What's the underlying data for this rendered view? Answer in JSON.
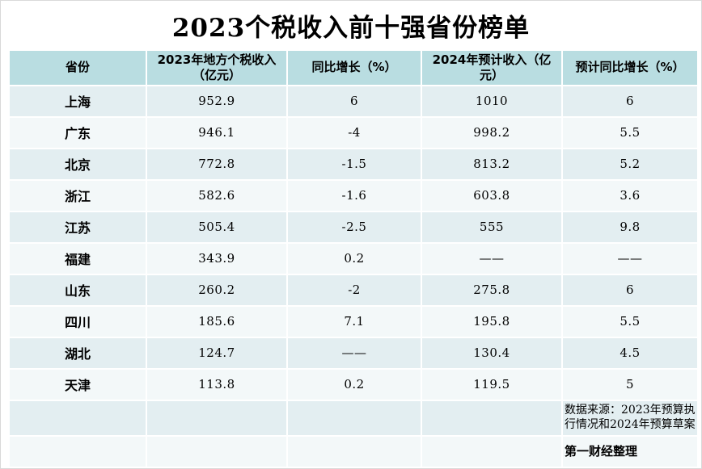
{
  "chart_data": {
    "type": "table",
    "title": "2023个税收入前十强省份榜单",
    "columns": [
      "省份",
      "2023年地方个税收入\n（亿元）",
      "同比增长（%）",
      "2024年预计收入（亿元）",
      "预计同比增长（%）"
    ],
    "rows": [
      [
        "上海",
        "952.9",
        "6",
        "1010",
        "6"
      ],
      [
        "广东",
        "946.1",
        "-4",
        "998.2",
        "5.5"
      ],
      [
        "北京",
        "772.8",
        "-1.5",
        "813.2",
        "5.2"
      ],
      [
        "浙江",
        "582.6",
        "-1.6",
        "603.8",
        "3.6"
      ],
      [
        "江苏",
        "505.4",
        "-2.5",
        "555",
        "9.8"
      ],
      [
        "福建",
        "343.9",
        "0.2",
        "——",
        "——"
      ],
      [
        "山东",
        "260.2",
        "-2",
        "275.8",
        "6"
      ],
      [
        "四川",
        "185.6",
        "7.1",
        "195.8",
        "5.5"
      ],
      [
        "湖北",
        "124.7",
        "——",
        "130.4",
        "4.5"
      ],
      [
        "天津",
        "113.8",
        "0.2",
        "119.5",
        "5"
      ]
    ],
    "source_note": "数据来源：2023年预算执行情况和2024年预算草案",
    "credit_note": "第一财经整理",
    "layout": {
      "grid": "white 2px gridline gaps, alternating row shading starting dark",
      "legend": "none"
    }
  },
  "colors": {
    "header_bg": "#b9dde1",
    "row_dark_bg": "#e3eef1",
    "row_light_bg": "#f3f8f9",
    "text": "#000000",
    "page_bg": "#ffffff"
  }
}
